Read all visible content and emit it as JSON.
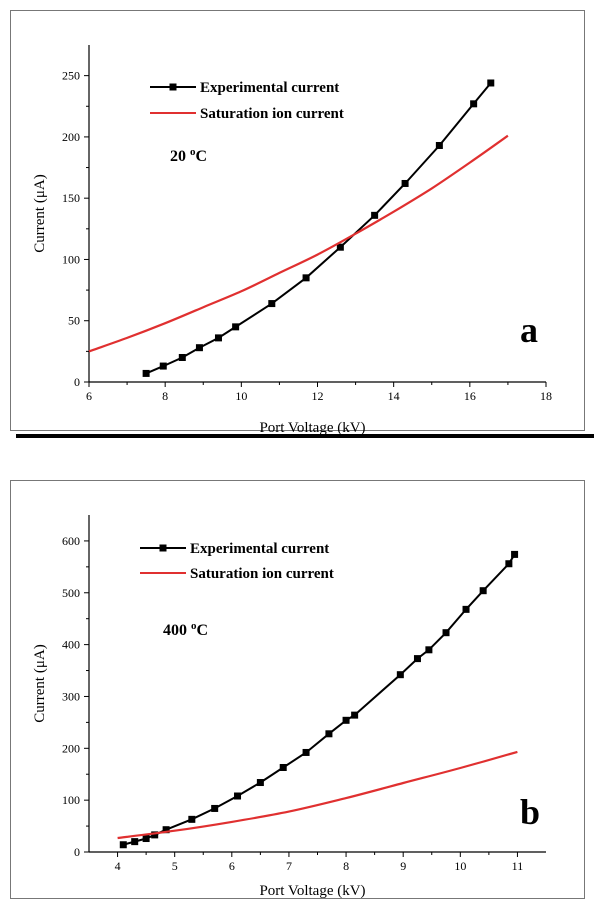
{
  "chart_data": [
    {
      "type": "line",
      "panel_label": "a",
      "annotation": "20 °C",
      "annotation_value": "20",
      "annotation_unit": "C",
      "xlabel": "Port Voltage (kV)",
      "ylabel": "Current (μA)",
      "xlim": [
        6,
        18
      ],
      "ylim": [
        0,
        275
      ],
      "xticks": [
        6,
        8,
        10,
        12,
        14,
        16,
        18
      ],
      "yticks": [
        0,
        50,
        100,
        150,
        200,
        250
      ],
      "grid": false,
      "legend_position": "top-left",
      "series": [
        {
          "name": "Experimental current",
          "color": "#000000",
          "marker": "square",
          "x": [
            7.5,
            7.95,
            8.45,
            8.9,
            9.4,
            9.85,
            10.8,
            11.7,
            12.6,
            13.5,
            14.3,
            15.2,
            16.1,
            16.55
          ],
          "y": [
            7,
            13,
            20,
            28,
            36,
            45,
            64,
            85,
            110,
            136,
            162,
            193,
            227,
            244
          ]
        },
        {
          "name": "Saturation ion current",
          "color": "#e03030",
          "marker": "none",
          "x": [
            6,
            7,
            8,
            9,
            10,
            11,
            12,
            13,
            14,
            15,
            16,
            17
          ],
          "y": [
            25,
            36,
            48,
            61,
            74,
            89,
            104,
            121,
            139,
            158,
            179,
            201
          ]
        }
      ]
    },
    {
      "type": "line",
      "panel_label": "b",
      "annotation": "400 °C",
      "annotation_value": "400",
      "annotation_unit": "C",
      "xlabel": "Port Voltage (kV)",
      "ylabel": "Current (μA)",
      "xlim": [
        3.5,
        11.5
      ],
      "ylim": [
        0,
        650
      ],
      "xticks": [
        4,
        5,
        6,
        7,
        8,
        9,
        10,
        11
      ],
      "yticks": [
        0,
        100,
        200,
        300,
        400,
        500,
        600
      ],
      "grid": false,
      "legend_position": "top-left",
      "series": [
        {
          "name": "Experimental current",
          "color": "#000000",
          "marker": "square",
          "x": [
            4.1,
            4.3,
            4.5,
            4.65,
            4.85,
            5.3,
            5.7,
            6.1,
            6.5,
            6.9,
            7.3,
            7.7,
            8.0,
            8.15,
            8.95,
            9.25,
            9.45,
            9.75,
            10.1,
            10.4,
            10.85,
            10.95
          ],
          "y": [
            14,
            20,
            26,
            33,
            43,
            63,
            84,
            108,
            134,
            163,
            192,
            228,
            254,
            264,
            342,
            373,
            390,
            423,
            468,
            504,
            556,
            574
          ]
        },
        {
          "name": "Saturation ion current",
          "color": "#e03030",
          "marker": "none",
          "x": [
            4,
            5,
            6,
            7,
            8,
            9,
            10,
            11
          ],
          "y": [
            27,
            41,
            58,
            78,
            104,
            133,
            162,
            193
          ]
        }
      ]
    }
  ]
}
